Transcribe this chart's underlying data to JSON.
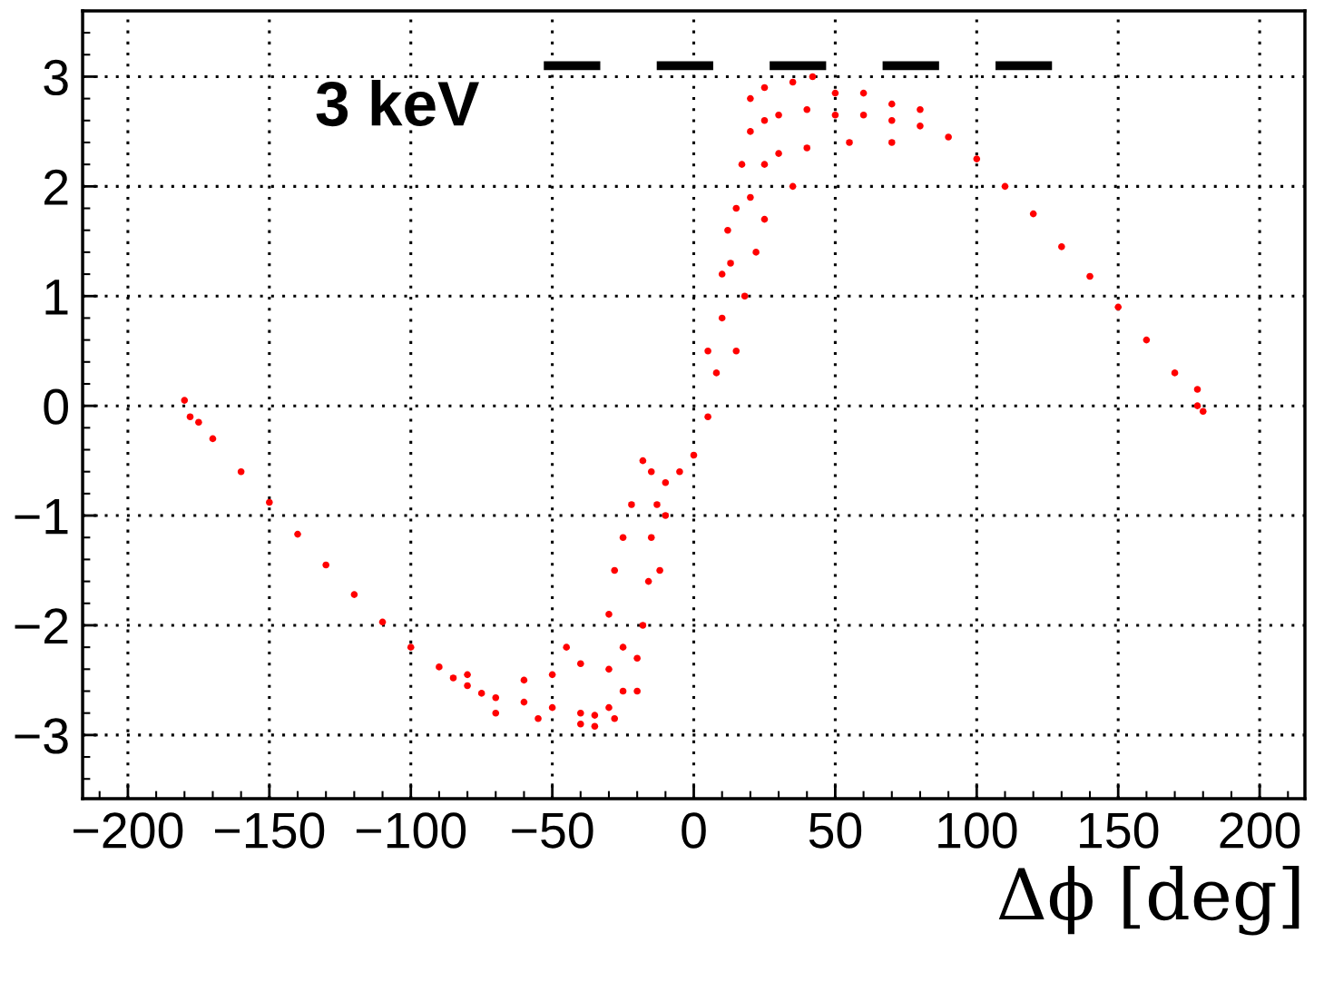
{
  "chart_data": {
    "type": "scatter",
    "xlabel": "Δϕ [deg]",
    "annotations": [
      "3 keV"
    ],
    "xlim": [
      -216,
      216
    ],
    "ylim": [
      -3.58,
      3.6
    ],
    "xticks": [
      -200,
      -150,
      -100,
      -50,
      0,
      50,
      100,
      150,
      200
    ],
    "yticks": [
      -3,
      -2,
      -1,
      0,
      1,
      2,
      3
    ],
    "grid": true,
    "marker": "circle",
    "series": [
      {
        "color": "#ff0000",
        "x": [
          -180,
          -178,
          -175,
          -170,
          -160,
          -150,
          -140,
          -130,
          -120,
          -110,
          -100,
          -90,
          -85,
          -80,
          -75,
          -70,
          -60,
          -50,
          -40,
          -35,
          -30,
          -25,
          -20,
          -18,
          -16,
          -15,
          -13,
          -10,
          -5,
          0,
          5,
          8,
          10,
          13,
          15,
          17,
          20,
          25,
          30,
          40,
          50,
          60,
          70,
          80,
          90,
          100,
          110,
          120,
          130,
          140,
          150,
          160,
          170,
          178,
          180,
          178,
          -80,
          -60,
          -50,
          -45,
          -40,
          -30,
          -25,
          -30,
          -28,
          -25,
          -22,
          -18,
          -15,
          -40,
          -35,
          -55,
          -70,
          -28,
          -20,
          -12,
          -10,
          20,
          25,
          35,
          42,
          50,
          60,
          70,
          80,
          25,
          30,
          40,
          55,
          70,
          25,
          22,
          18,
          15,
          20,
          12,
          10,
          5,
          35
        ],
        "values": [
          0.05,
          -0.1,
          -0.15,
          -0.3,
          -0.6,
          -0.88,
          -1.17,
          -1.45,
          -1.72,
          -1.97,
          -2.2,
          -2.38,
          -2.48,
          -2.55,
          -2.62,
          -2.66,
          -2.7,
          -2.75,
          -2.8,
          -2.82,
          -2.75,
          -2.6,
          -2.3,
          -2.0,
          -1.6,
          -1.2,
          -0.9,
          -0.7,
          -0.6,
          -0.45,
          -0.1,
          0.3,
          0.8,
          1.3,
          1.8,
          2.2,
          2.5,
          2.6,
          2.65,
          2.7,
          2.65,
          2.65,
          2.6,
          2.55,
          2.45,
          2.25,
          2.0,
          1.75,
          1.45,
          1.18,
          0.9,
          0.6,
          0.3,
          0.0,
          -0.05,
          0.15,
          -2.45,
          -2.5,
          -2.45,
          -2.2,
          -2.35,
          -2.4,
          -2.2,
          -1.9,
          -1.5,
          -1.2,
          -0.9,
          -0.5,
          -0.6,
          -2.9,
          -2.92,
          -2.85,
          -2.8,
          -2.85,
          -2.6,
          -1.5,
          -1.0,
          2.8,
          2.9,
          2.95,
          3.0,
          2.85,
          2.85,
          2.75,
          2.7,
          2.2,
          2.3,
          2.35,
          2.4,
          2.4,
          1.7,
          1.4,
          1.0,
          0.5,
          1.9,
          1.6,
          1.2,
          0.5,
          2.0
        ]
      },
      {
        "type": "line",
        "color": "#000000",
        "line_style": "dashed",
        "marker": "none",
        "x": [
          -53,
          127
        ],
        "values": [
          3.1,
          3.1
        ]
      }
    ]
  }
}
